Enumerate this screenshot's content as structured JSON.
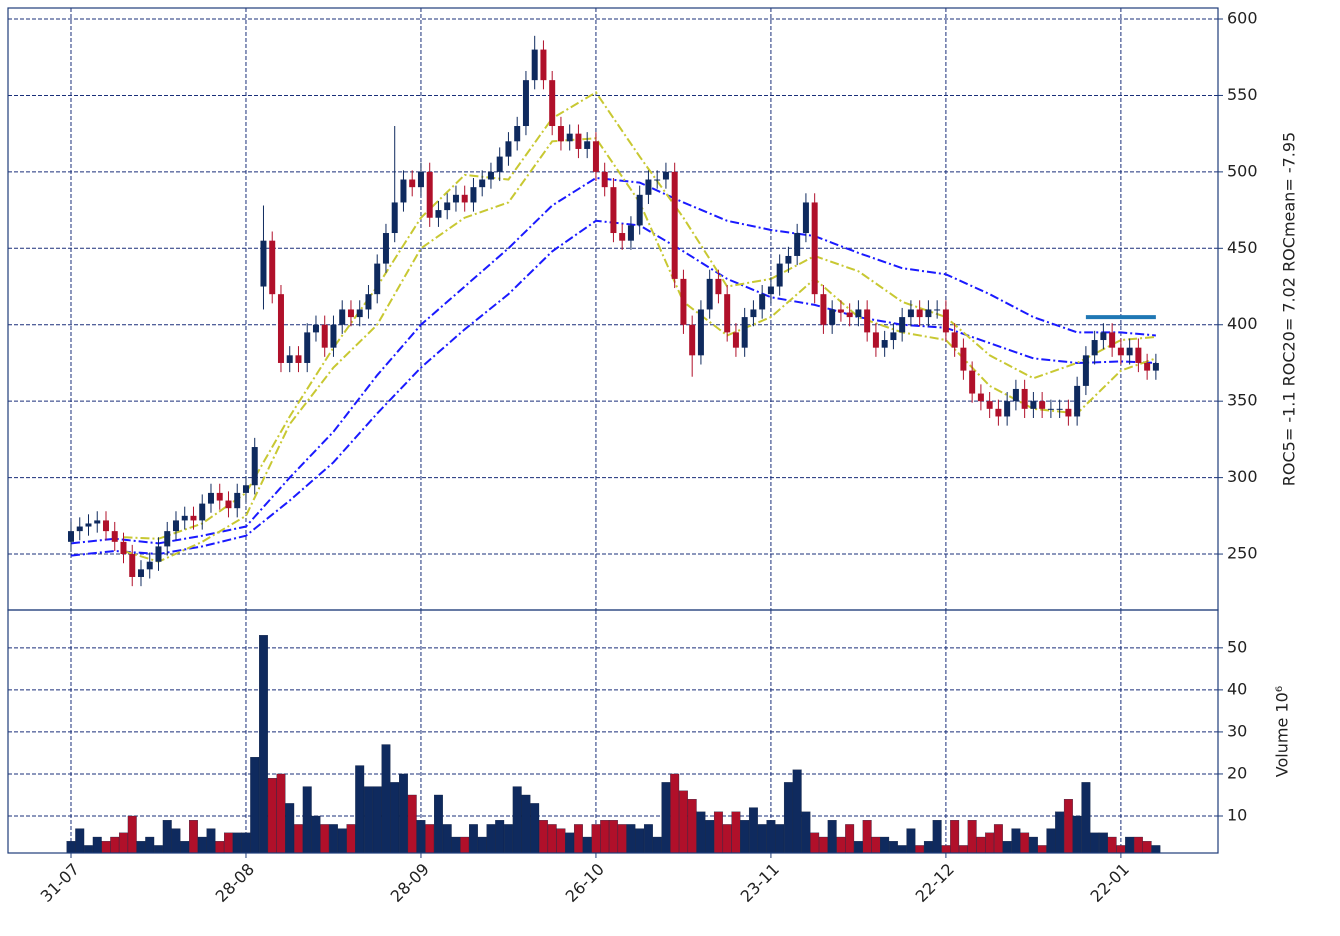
{
  "chart_data": [
    {
      "type": "candlestick",
      "ylabel": "ROC5= -1.1 ROC20= 7.02 ROCmean= -7.95",
      "open": [
        258,
        265,
        268,
        270,
        272,
        265,
        258,
        250,
        235,
        240,
        245,
        255,
        265,
        272,
        275,
        272,
        283,
        290,
        285,
        280,
        290,
        295,
        425,
        455,
        420,
        375,
        380,
        375,
        395,
        400,
        385,
        400,
        410,
        405,
        410,
        420,
        440,
        460,
        480,
        495,
        490,
        500,
        470,
        475,
        480,
        485,
        480,
        490,
        495,
        500,
        510,
        520,
        530,
        560,
        580,
        560,
        530,
        520,
        525,
        515,
        520,
        500,
        490,
        460,
        455,
        465,
        485,
        495,
        495,
        500,
        430,
        400,
        380,
        410,
        430,
        420,
        395,
        385,
        405,
        410,
        420,
        425,
        440,
        445,
        460,
        480,
        420,
        400,
        410,
        408,
        405,
        410,
        395,
        385,
        390,
        395,
        405,
        410,
        405,
        410,
        410,
        395,
        385,
        370,
        355,
        350,
        345,
        340,
        350,
        358,
        345,
        350,
        345,
        345,
        345,
        340,
        360,
        380,
        390,
        395,
        385,
        380,
        385,
        375,
        370
      ],
      "high": [
        271,
        274,
        276,
        278,
        278,
        271,
        264,
        256,
        246,
        251,
        261,
        271,
        278,
        281,
        281,
        289,
        296,
        296,
        291,
        296,
        301,
        326,
        478,
        461,
        426,
        386,
        386,
        401,
        406,
        406,
        406,
        416,
        416,
        416,
        426,
        446,
        466,
        530,
        501,
        501,
        506,
        506,
        481,
        486,
        491,
        491,
        496,
        501,
        506,
        516,
        526,
        536,
        566,
        589,
        586,
        566,
        536,
        531,
        531,
        526,
        526,
        506,
        496,
        466,
        471,
        491,
        501,
        501,
        506,
        506,
        436,
        406,
        416,
        436,
        436,
        426,
        401,
        411,
        416,
        426,
        431,
        446,
        451,
        466,
        486,
        486,
        426,
        416,
        416,
        414,
        416,
        416,
        401,
        396,
        401,
        411,
        416,
        416,
        416,
        416,
        416,
        401,
        391,
        376,
        361,
        356,
        351,
        356,
        364,
        364,
        356,
        356,
        351,
        351,
        351,
        366,
        386,
        396,
        401,
        401,
        391,
        391,
        391,
        381,
        381
      ],
      "low": [
        252,
        259,
        262,
        264,
        259,
        252,
        244,
        229,
        229,
        234,
        239,
        249,
        259,
        266,
        266,
        266,
        277,
        279,
        274,
        274,
        284,
        289,
        410,
        414,
        369,
        369,
        369,
        369,
        389,
        379,
        379,
        394,
        399,
        399,
        404,
        414,
        434,
        454,
        474,
        484,
        484,
        464,
        464,
        469,
        474,
        474,
        474,
        484,
        489,
        494,
        504,
        514,
        524,
        554,
        554,
        524,
        514,
        514,
        509,
        509,
        494,
        484,
        454,
        449,
        449,
        459,
        479,
        489,
        489,
        424,
        394,
        366,
        374,
        404,
        414,
        389,
        379,
        379,
        399,
        404,
        414,
        419,
        434,
        439,
        454,
        414,
        394,
        394,
        402,
        399,
        399,
        389,
        379,
        379,
        384,
        389,
        399,
        399,
        399,
        404,
        389,
        379,
        364,
        349,
        344,
        339,
        334,
        334,
        344,
        339,
        339,
        339,
        339,
        339,
        334,
        334,
        354,
        374,
        384,
        379,
        374,
        374,
        369,
        364,
        364
      ],
      "close": [
        265,
        268,
        270,
        272,
        265,
        258,
        250,
        235,
        240,
        245,
        255,
        265,
        272,
        275,
        272,
        283,
        290,
        285,
        280,
        290,
        295,
        320,
        455,
        420,
        375,
        380,
        375,
        395,
        400,
        385,
        400,
        410,
        405,
        410,
        420,
        440,
        460,
        480,
        495,
        490,
        500,
        470,
        475,
        480,
        485,
        480,
        490,
        495,
        500,
        510,
        520,
        530,
        560,
        580,
        560,
        530,
        520,
        525,
        515,
        520,
        500,
        490,
        460,
        455,
        465,
        485,
        495,
        495,
        500,
        430,
        400,
        380,
        410,
        430,
        420,
        395,
        385,
        405,
        410,
        420,
        425,
        440,
        445,
        460,
        480,
        420,
        400,
        410,
        408,
        405,
        410,
        395,
        385,
        390,
        395,
        405,
        410,
        405,
        410,
        410,
        395,
        385,
        370,
        355,
        350,
        345,
        340,
        350,
        358,
        345,
        350,
        345,
        345,
        345,
        340,
        360,
        380,
        390,
        395,
        385,
        380,
        385,
        375,
        370,
        375
      ],
      "up_color": "#0f2a5e",
      "down_color": "#b0102a",
      "series": [
        {
          "color": "#1a1aff",
          "x": [
            0,
            5,
            10,
            15,
            20,
            25,
            30,
            35,
            40,
            45,
            50,
            55,
            60,
            65,
            70,
            75,
            80,
            85,
            90,
            95,
            100,
            105,
            110,
            115,
            120,
            124
          ],
          "values": [
            257,
            260,
            257,
            262,
            268,
            300,
            330,
            367,
            400,
            425,
            450,
            478,
            496,
            493,
            480,
            468,
            462,
            458,
            447,
            437,
            433,
            420,
            405,
            395,
            395,
            393
          ]
        },
        {
          "color": "#1a1aff",
          "x": [
            0,
            5,
            10,
            15,
            20,
            25,
            30,
            35,
            40,
            45,
            50,
            55,
            60,
            65,
            70,
            75,
            80,
            85,
            90,
            95,
            100,
            105,
            110,
            115,
            120,
            124
          ],
          "values": [
            249,
            252,
            250,
            255,
            262,
            285,
            310,
            342,
            372,
            397,
            420,
            448,
            468,
            465,
            448,
            430,
            418,
            413,
            405,
            400,
            398,
            388,
            378,
            375,
            376,
            375
          ]
        },
        {
          "color": "#c8c832",
          "x": [
            6,
            10,
            15,
            20,
            25,
            30,
            35,
            40,
            45,
            50,
            55,
            60,
            65,
            70,
            75,
            80,
            85,
            90,
            95,
            100,
            105,
            110,
            115,
            120,
            124
          ],
          "values": [
            261,
            260,
            270,
            290,
            340,
            385,
            425,
            470,
            498,
            495,
            535,
            552,
            510,
            470,
            425,
            430,
            445,
            435,
            415,
            405,
            380,
            365,
            375,
            390,
            392
          ]
        },
        {
          "color": "#c8c832",
          "x": [
            6,
            10,
            15,
            20,
            25,
            30,
            35,
            40,
            45,
            50,
            55,
            60,
            65,
            70,
            75,
            80,
            85,
            90,
            95,
            100,
            105,
            110,
            115,
            120,
            124
          ],
          "values": [
            252,
            245,
            258,
            275,
            335,
            372,
            400,
            450,
            470,
            480,
            520,
            522,
            480,
            415,
            393,
            405,
            430,
            405,
            395,
            390,
            360,
            345,
            342,
            370,
            378
          ]
        }
      ],
      "level_line": {
        "value": 405,
        "x": [
          116,
          124
        ],
        "color": "#1f77b4"
      },
      "xlim": [
        -7.2,
        131.1
      ],
      "ylim": [
        213.4,
        607.2
      ],
      "yticks": [
        250,
        300,
        350,
        400,
        450,
        500,
        550,
        600
      ],
      "grid": true
    },
    {
      "type": "bar",
      "ylabel": "Volume  10⁶",
      "values": [
        4,
        7,
        3,
        5,
        4,
        5,
        6,
        10,
        4,
        5,
        3,
        9,
        7,
        4,
        9,
        5,
        7,
        4,
        6,
        6,
        6,
        24,
        53,
        19,
        20,
        13,
        8,
        17,
        10,
        8,
        8,
        7,
        8,
        22,
        17,
        17,
        27,
        18,
        20,
        15,
        9,
        8,
        15,
        8,
        5,
        5,
        8,
        5,
        8,
        9,
        8,
        17,
        15,
        13,
        9,
        8,
        7,
        6,
        8,
        5,
        8,
        9,
        9,
        8,
        8,
        7,
        8,
        5,
        18,
        20,
        16,
        14,
        11,
        9,
        11,
        8,
        11,
        9,
        12,
        8,
        9,
        8,
        18,
        21,
        11,
        6,
        5,
        9,
        5,
        8,
        4,
        9,
        5,
        5,
        4,
        3,
        7,
        3,
        4,
        9,
        3,
        9,
        3,
        9,
        5,
        6,
        8,
        4,
        7,
        6,
        5,
        3,
        7,
        11,
        14,
        10,
        18,
        6,
        6,
        5,
        3,
        5,
        5,
        4,
        3
      ],
      "xlim": [
        -7.2,
        131.1
      ],
      "ylim": [
        1.2,
        59
      ],
      "yticks": [
        10,
        20,
        30,
        40,
        50
      ],
      "xticks": [
        {
          "value": 0,
          "label": "31-07"
        },
        {
          "value": 20,
          "label": "28-08"
        },
        {
          "value": 40,
          "label": "28-09"
        },
        {
          "value": 60,
          "label": "26-10"
        },
        {
          "value": 80,
          "label": "23-11"
        },
        {
          "value": 100,
          "label": "22-12"
        },
        {
          "value": 120,
          "label": "22-01"
        }
      ],
      "grid": true
    }
  ]
}
